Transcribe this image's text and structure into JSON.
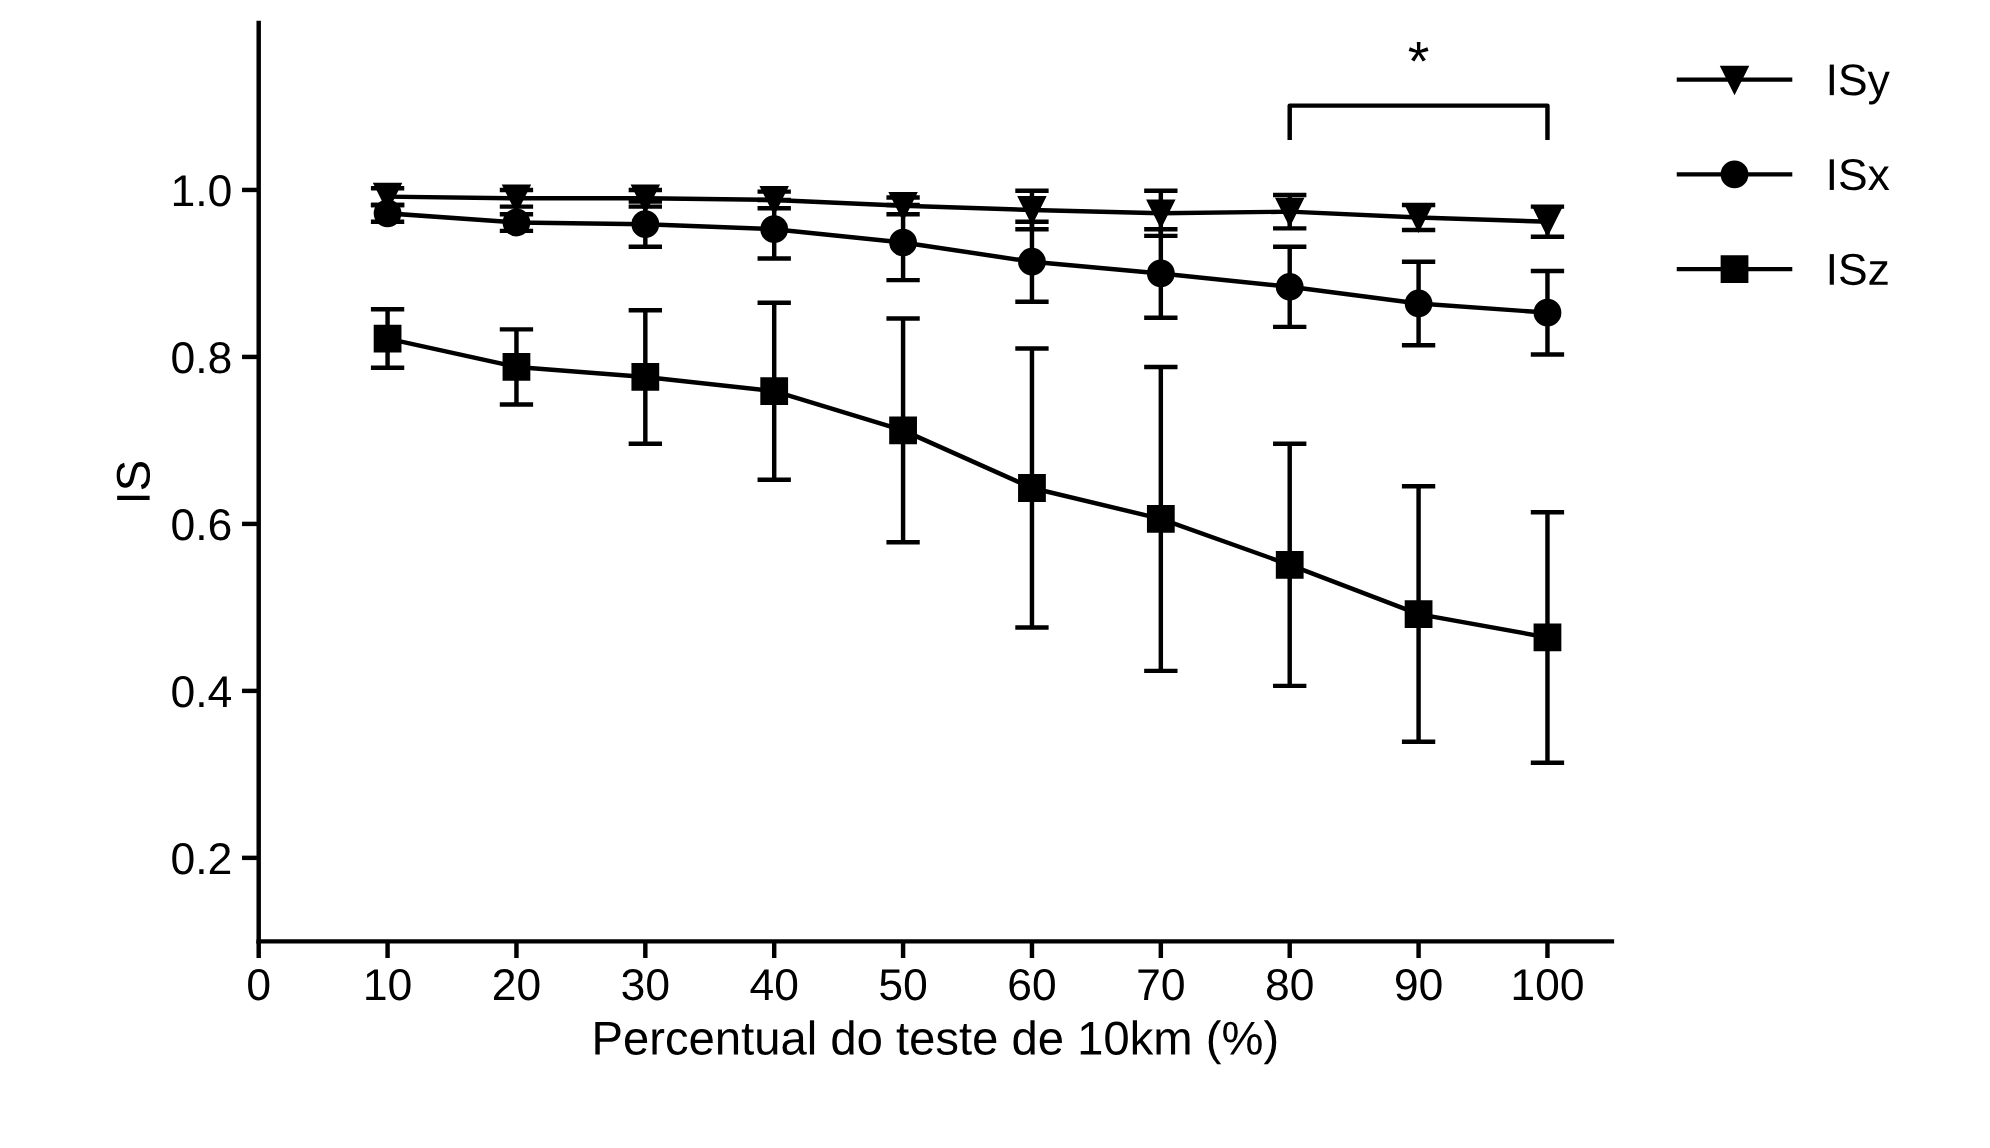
{
  "chart_data": {
    "type": "line",
    "xlabel": "Percentual do teste de 10km (%)",
    "ylabel": "IS",
    "x": [
      10,
      20,
      30,
      40,
      50,
      60,
      70,
      80,
      90,
      100
    ],
    "xlim": [
      0,
      105
    ],
    "xticks": [
      0,
      10,
      20,
      30,
      40,
      50,
      60,
      70,
      80,
      90,
      100
    ],
    "ylim": [
      0.1,
      1.2
    ],
    "yticks": [
      0.2,
      0.4,
      0.6,
      0.8,
      {
        "value": 1.0,
        "label": "1.0"
      }
    ],
    "grid": false,
    "legend": "right",
    "annotations": [
      "*"
    ],
    "series": [
      {
        "name": "ISy",
        "color": "#000000",
        "marker": "triangle",
        "values": [
          0.992,
          0.99,
          0.99,
          0.988,
          0.981,
          0.976,
          0.972,
          0.974,
          0.967,
          0.962
        ],
        "errors": [
          0.01,
          0.01,
          0.01,
          0.01,
          0.01,
          0.023,
          0.027,
          0.02,
          0.015,
          0.018
        ]
      },
      {
        "name": "ISx",
        "color": "#000000",
        "marker": "circle",
        "values": [
          0.972,
          0.961,
          0.959,
          0.953,
          0.937,
          0.914,
          0.9,
          0.884,
          0.864,
          0.853
        ],
        "errors": [
          0.01,
          0.01,
          0.027,
          0.035,
          0.045,
          0.048,
          0.053,
          0.048,
          0.05,
          0.05
        ]
      },
      {
        "name": "ISz",
        "color": "#000000",
        "marker": "square",
        "values": [
          0.822,
          0.788,
          0.776,
          0.759,
          0.712,
          0.643,
          0.606,
          0.551,
          0.492,
          0.464
        ],
        "errors": [
          0.035,
          0.045,
          0.08,
          0.106,
          0.134,
          0.167,
          0.182,
          0.145,
          0.153,
          0.15
        ]
      }
    ]
  }
}
